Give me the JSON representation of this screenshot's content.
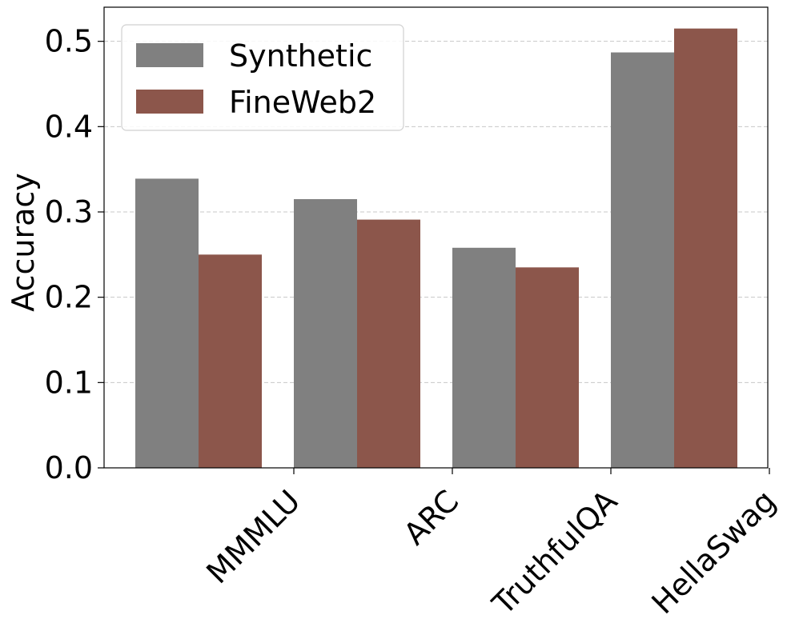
{
  "chart_data": {
    "type": "bar",
    "title": "",
    "xlabel": "",
    "ylabel": "Accuracy",
    "categories": [
      "MMMLU",
      "ARC",
      "TruthfulQA",
      "HellaSwag"
    ],
    "series": [
      {
        "name": "Synthetic",
        "color": "#808080",
        "values": [
          0.339,
          0.315,
          0.258,
          0.487
        ]
      },
      {
        "name": "FineWeb2",
        "color": "#8c564b",
        "values": [
          0.25,
          0.291,
          0.235,
          0.515
        ]
      }
    ],
    "ylim": [
      0.0,
      0.54
    ],
    "yticks": [
      0.0,
      0.1,
      0.2,
      0.3,
      0.4,
      0.5
    ],
    "ytick_labels": [
      "0.0",
      "0.1",
      "0.2",
      "0.3",
      "0.4",
      "0.5"
    ],
    "grid": {
      "y": true,
      "x": false,
      "style": "dashed"
    },
    "legend": {
      "position": "top-left",
      "entries": [
        "Synthetic",
        "FineWeb2"
      ]
    }
  }
}
